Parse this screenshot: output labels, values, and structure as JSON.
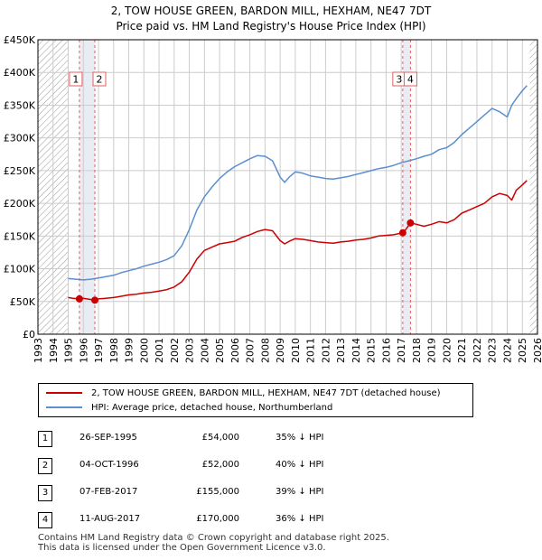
{
  "title_line1": "2, TOW HOUSE GREEN, BARDON MILL, HEXHAM, NE47 7DT",
  "title_line2": "Price paid vs. HM Land Registry's House Price Index (HPI)",
  "colors": {
    "red": "#cc0000",
    "blue": "#5b8fd0",
    "grid": "#cccccc",
    "shade": "#e8edf5",
    "hatch": "#999999",
    "vline": "#e06060"
  },
  "chart_data": {
    "type": "line",
    "xlim": [
      1993,
      2026
    ],
    "ylim": [
      0,
      450000
    ],
    "y_ticks": [
      0,
      50000,
      100000,
      150000,
      200000,
      250000,
      300000,
      350000,
      400000,
      450000
    ],
    "y_tick_labels": [
      "£0",
      "£50K",
      "£100K",
      "£150K",
      "£200K",
      "£250K",
      "£300K",
      "£350K",
      "£400K",
      "£450K"
    ],
    "x_ticks": [
      1993,
      1994,
      1995,
      1996,
      1997,
      1998,
      1999,
      2000,
      2001,
      2002,
      2003,
      2004,
      2005,
      2006,
      2007,
      2008,
      2009,
      2010,
      2011,
      2012,
      2013,
      2014,
      2015,
      2016,
      2017,
      2018,
      2019,
      2020,
      2021,
      2022,
      2023,
      2024,
      2025,
      2026
    ],
    "data_start": 1995.0,
    "data_end": 2025.5,
    "series": [
      {
        "name": "2, TOW HOUSE GREEN, BARDON MILL, HEXHAM, NE47 7DT (detached house)",
        "color": "#cc0000",
        "x": [
          1995.0,
          1995.3,
          1995.74,
          1996.0,
          1996.5,
          1996.76,
          1997.0,
          1997.5,
          1998.0,
          1998.5,
          1999.0,
          1999.5,
          2000.0,
          2000.5,
          2001.0,
          2001.5,
          2002.0,
          2002.5,
          2003.0,
          2003.5,
          2004.0,
          2004.5,
          2005.0,
          2005.5,
          2006.0,
          2006.5,
          2007.0,
          2007.5,
          2008.0,
          2008.5,
          2009.0,
          2009.3,
          2009.6,
          2010.0,
          2010.5,
          2011.0,
          2011.5,
          2012.0,
          2012.5,
          2013.0,
          2013.5,
          2014.0,
          2014.5,
          2015.0,
          2015.5,
          2016.0,
          2016.5,
          2017.1,
          2017.3,
          2017.61,
          2018.0,
          2018.5,
          2019.0,
          2019.5,
          2020.0,
          2020.5,
          2021.0,
          2021.5,
          2022.0,
          2022.5,
          2023.0,
          2023.5,
          2024.0,
          2024.3,
          2024.6,
          2025.0,
          2025.3
        ],
        "y": [
          56000,
          55000,
          54000,
          55000,
          53000,
          52000,
          54000,
          55000,
          56000,
          58000,
          60000,
          61000,
          63000,
          64000,
          66000,
          68000,
          72000,
          80000,
          95000,
          115000,
          128000,
          133000,
          138000,
          140000,
          142000,
          148000,
          152000,
          157000,
          160000,
          158000,
          143000,
          138000,
          142000,
          146000,
          145000,
          143000,
          141000,
          140000,
          139000,
          141000,
          142000,
          144000,
          145000,
          147000,
          150000,
          151000,
          152000,
          155000,
          160000,
          170000,
          168000,
          165000,
          168000,
          172000,
          170000,
          175000,
          185000,
          190000,
          195000,
          200000,
          210000,
          215000,
          212000,
          205000,
          220000,
          228000,
          235000
        ]
      },
      {
        "name": "HPI: Average price, detached house, Northumberland",
        "color": "#5b8fd0",
        "x": [
          1995.0,
          1995.5,
          1996.0,
          1996.5,
          1997.0,
          1997.5,
          1998.0,
          1998.5,
          1999.0,
          1999.5,
          2000.0,
          2000.5,
          2001.0,
          2001.5,
          2002.0,
          2002.5,
          2003.0,
          2003.5,
          2004.0,
          2004.5,
          2005.0,
          2005.5,
          2006.0,
          2006.5,
          2007.0,
          2007.5,
          2008.0,
          2008.5,
          2009.0,
          2009.3,
          2009.6,
          2010.0,
          2010.5,
          2011.0,
          2011.5,
          2012.0,
          2012.5,
          2013.0,
          2013.5,
          2014.0,
          2014.5,
          2015.0,
          2015.5,
          2016.0,
          2016.5,
          2017.0,
          2017.5,
          2018.0,
          2018.5,
          2019.0,
          2019.5,
          2020.0,
          2020.5,
          2021.0,
          2021.5,
          2022.0,
          2022.5,
          2023.0,
          2023.5,
          2024.0,
          2024.3,
          2024.6,
          2025.0,
          2025.3
        ],
        "y": [
          85000,
          84000,
          83000,
          84000,
          86000,
          88000,
          90000,
          94000,
          97000,
          100000,
          104000,
          107000,
          110000,
          114000,
          120000,
          135000,
          160000,
          190000,
          210000,
          225000,
          238000,
          248000,
          256000,
          262000,
          268000,
          273000,
          272000,
          265000,
          240000,
          232000,
          240000,
          248000,
          246000,
          242000,
          240000,
          238000,
          237000,
          239000,
          241000,
          244000,
          247000,
          250000,
          253000,
          255000,
          258000,
          262000,
          265000,
          268000,
          272000,
          275000,
          282000,
          285000,
          293000,
          305000,
          315000,
          325000,
          335000,
          345000,
          340000,
          332000,
          350000,
          360000,
          372000,
          380000
        ]
      }
    ],
    "sales": [
      {
        "num": "1",
        "date": "26-SEP-1995",
        "price": "£54,000",
        "hpi": "35% ↓ HPI",
        "year": 1995.74,
        "value": 54000
      },
      {
        "num": "2",
        "date": "04-OCT-1996",
        "price": "£52,000",
        "hpi": "40% ↓ HPI",
        "year": 1996.76,
        "value": 52000
      },
      {
        "num": "3",
        "date": "07-FEB-2017",
        "price": "£155,000",
        "hpi": "39% ↓ HPI",
        "year": 2017.1,
        "value": 155000
      },
      {
        "num": "4",
        "date": "11-AUG-2017",
        "price": "£170,000",
        "hpi": "36% ↓ HPI",
        "year": 2017.61,
        "value": 170000
      }
    ]
  },
  "legend": {
    "red_label": "2, TOW HOUSE GREEN, BARDON MILL, HEXHAM, NE47 7DT (detached house)",
    "blue_label": "HPI: Average price, detached house, Northumberland"
  },
  "footer": {
    "line1": "Contains HM Land Registry data © Crown copyright and database right 2025.",
    "line2": "This data is licensed under the Open Government Licence v3.0."
  }
}
